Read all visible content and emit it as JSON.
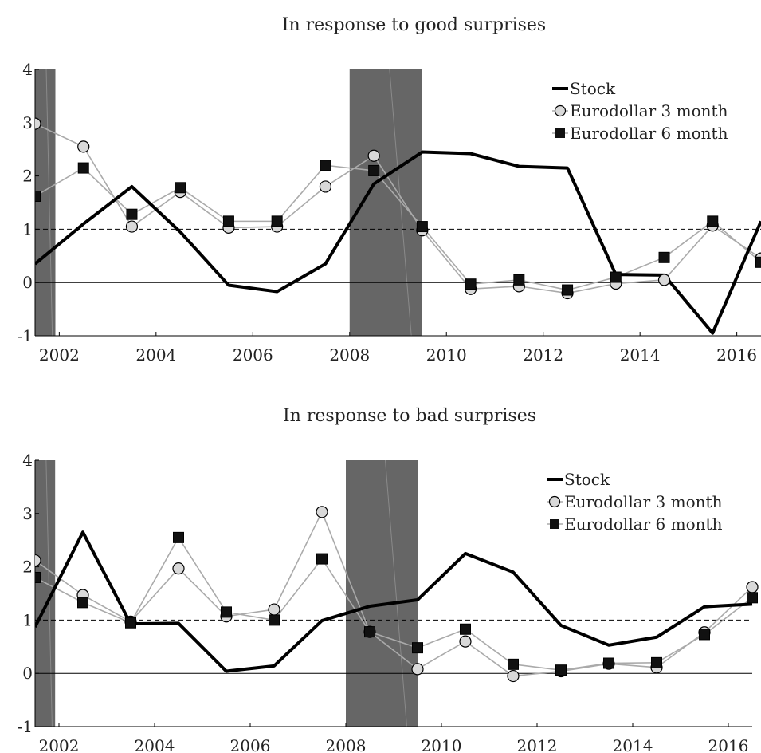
{
  "chart_data": [
    {
      "type": "line",
      "title": "In response to good surprises",
      "x": [
        2001.5,
        2002.5,
        2003.5,
        2004.5,
        2005.5,
        2006.5,
        2007.5,
        2008.5,
        2009.5,
        2010.5,
        2011.5,
        2012.5,
        2013.5,
        2014.5,
        2015.5,
        2016.5
      ],
      "xticks": [
        "2002",
        "2004",
        "2006",
        "2008",
        "2010",
        "2012",
        "2014",
        "2016"
      ],
      "yticks": [
        "-1",
        "0",
        "1",
        "2",
        "3",
        "4"
      ],
      "xlim": [
        2001.5,
        2016.5
      ],
      "ylim": [
        -1,
        4
      ],
      "reference_line": 1,
      "zero_line": 0,
      "shaded_periods": [
        [
          2001.5,
          2001.92
        ],
        [
          2008.0,
          2009.5
        ]
      ],
      "legend_position": "top-right",
      "series": [
        {
          "name": "Stock",
          "color": "#000000",
          "marker": "none",
          "values": [
            0.35,
            1.1,
            1.8,
            0.95,
            -0.05,
            -0.17,
            0.35,
            1.85,
            2.45,
            2.42,
            2.18,
            2.15,
            0.15,
            0.14,
            -0.95,
            1.15
          ]
        },
        {
          "name": "Eurodollar 3 month",
          "color": "#aaaaaa",
          "marker": "circle",
          "values": [
            2.98,
            2.55,
            1.05,
            1.7,
            1.03,
            1.05,
            1.8,
            2.38,
            0.98,
            -0.12,
            -0.07,
            -0.2,
            -0.02,
            0.05,
            1.07,
            0.45
          ]
        },
        {
          "name": "Eurodollar 6 month",
          "color": "#aaaaaa",
          "marker": "square",
          "values": [
            1.62,
            2.15,
            1.28,
            1.78,
            1.15,
            1.15,
            2.2,
            2.1,
            1.05,
            -0.03,
            0.05,
            -0.14,
            0.1,
            0.47,
            1.15,
            0.38
          ]
        }
      ]
    },
    {
      "type": "line",
      "title": "In response to bad surprises",
      "x": [
        2001.5,
        2002.5,
        2003.5,
        2004.5,
        2005.5,
        2006.5,
        2007.5,
        2008.5,
        2009.5,
        2010.5,
        2011.5,
        2012.5,
        2013.5,
        2014.5,
        2015.5,
        2016.5
      ],
      "xticks": [
        "2002",
        "2004",
        "2006",
        "2008",
        "2010",
        "2012",
        "2014",
        "2016"
      ],
      "yticks": [
        "-1",
        "0",
        "1",
        "2",
        "3",
        "4"
      ],
      "xlim": [
        2001.5,
        2016.5
      ],
      "ylim": [
        -1,
        4
      ],
      "reference_line": 1,
      "zero_line": 0,
      "shaded_periods": [
        [
          2001.5,
          2001.92
        ],
        [
          2008.0,
          2009.5
        ]
      ],
      "legend_position": "top-right",
      "series": [
        {
          "name": "Stock",
          "color": "#000000",
          "marker": "none",
          "values": [
            0.87,
            2.65,
            0.93,
            0.94,
            0.04,
            0.14,
            0.99,
            1.26,
            1.38,
            2.25,
            1.9,
            0.9,
            0.53,
            0.68,
            1.25,
            1.3
          ]
        },
        {
          "name": "Eurodollar 3 month",
          "color": "#aaaaaa",
          "marker": "circle",
          "values": [
            2.12,
            1.47,
            0.97,
            1.97,
            1.07,
            1.2,
            3.03,
            0.78,
            0.08,
            0.6,
            -0.05,
            0.04,
            0.18,
            0.11,
            0.77,
            1.62
          ]
        },
        {
          "name": "Eurodollar 6 month",
          "color": "#aaaaaa",
          "marker": "square",
          "values": [
            1.8,
            1.33,
            0.95,
            2.55,
            1.15,
            1.0,
            2.15,
            0.78,
            0.48,
            0.83,
            0.17,
            0.06,
            0.19,
            0.2,
            0.73,
            1.42
          ]
        }
      ]
    }
  ]
}
